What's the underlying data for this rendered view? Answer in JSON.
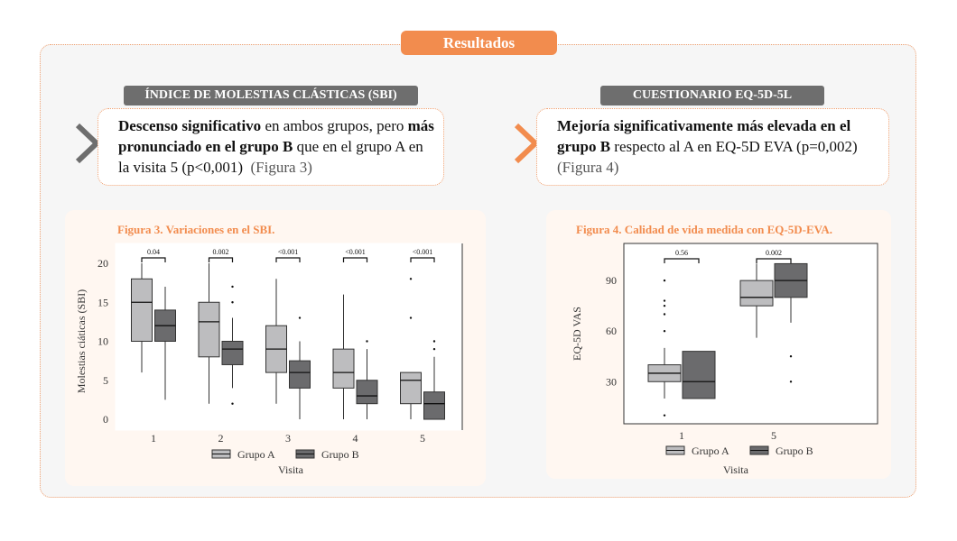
{
  "header": {
    "title": "Resultados"
  },
  "left": {
    "label": "ÍNDICE DE MOLESTIAS CLÁSTICAS (SBI)",
    "text": {
      "b1": "Descenso significativo",
      "t1": " en ambos grupos, pero ",
      "b2": "más pronunciado en el grupo B",
      "t2": " que en el grupo A en la visita 5 (p<0,001)",
      "ref": "(Figura 3)"
    }
  },
  "right": {
    "label": "CUESTIONARIO EQ-5D-5L",
    "text": {
      "b1": "Mejoría significativamente más elevada en el grupo B",
      "t1": " respecto al A en EQ-5D EVA (p=0,002)",
      "ref": "(Figura 4)"
    }
  },
  "colors": {
    "accent": "#f28c4e",
    "grupo_a": "#bdbdbf",
    "grupo_b": "#6b6b6d"
  },
  "icons": [
    "chevron-right-icon-gray",
    "chevron-right-icon-orange"
  ],
  "chart_data": [
    {
      "type": "boxplot",
      "title": "Figura 3. Variaciones en el SBI.",
      "xlabel": "Visita",
      "ylabel": "Molestias ciáticas (SBI)",
      "categories": [
        "1",
        "2",
        "3",
        "4",
        "5"
      ],
      "ylim": [
        0,
        20
      ],
      "yticks": [
        0,
        5,
        10,
        15,
        20
      ],
      "legend": [
        "Grupo A",
        "Grupo B"
      ],
      "pvalues": [
        "0.04",
        "0.002",
        "<0.001",
        "<0.001",
        "<0.001"
      ],
      "series": [
        {
          "name": "Grupo A",
          "boxes": [
            {
              "q1": 10,
              "median": 15,
              "q3": 18,
              "lo": 6,
              "hi": 20,
              "out": []
            },
            {
              "q1": 8,
              "median": 12.5,
              "q3": 15,
              "lo": 2,
              "hi": 20,
              "out": []
            },
            {
              "q1": 6,
              "median": 9,
              "q3": 12,
              "lo": 2,
              "hi": 18,
              "out": []
            },
            {
              "q1": 4,
              "median": 6,
              "q3": 9,
              "lo": 0,
              "hi": 16,
              "out": []
            },
            {
              "q1": 2,
              "median": 5,
              "q3": 6,
              "lo": 0,
              "hi": 6,
              "out": [
                13,
                18
              ]
            }
          ]
        },
        {
          "name": "Grupo B",
          "boxes": [
            {
              "q1": 10,
              "median": 12,
              "q3": 14,
              "lo": 2.5,
              "hi": 17,
              "out": []
            },
            {
              "q1": 7,
              "median": 9,
              "q3": 10,
              "lo": 4,
              "hi": 13,
              "out": [
                2,
                15,
                17
              ]
            },
            {
              "q1": 4,
              "median": 6,
              "q3": 7.5,
              "lo": 0,
              "hi": 10,
              "out": [
                13
              ]
            },
            {
              "q1": 2,
              "median": 3,
              "q3": 5,
              "lo": 0,
              "hi": 9,
              "out": [
                10
              ]
            },
            {
              "q1": 0,
              "median": 2,
              "q3": 3.5,
              "lo": 0,
              "hi": 8,
              "out": [
                9,
                10
              ]
            }
          ]
        }
      ]
    },
    {
      "type": "boxplot",
      "title": "Figura 4. Calidad de vida medida con EQ-5D-EVA.",
      "xlabel": "Visita",
      "ylabel": "EQ-5D VAS",
      "categories": [
        "1",
        "5"
      ],
      "ylim": [
        5,
        112
      ],
      "yticks": [
        30,
        60,
        90
      ],
      "legend": [
        "Grupo A",
        "Grupo B"
      ],
      "pvalues": [
        "0.56",
        "0.002"
      ],
      "series": [
        {
          "name": "Grupo A",
          "boxes": [
            {
              "q1": 30,
              "median": 35,
              "q3": 40,
              "lo": 20,
              "hi": 50,
              "out": [
                10,
                60,
                70,
                75,
                78,
                90
              ]
            },
            {
              "q1": 75,
              "median": 80,
              "q3": 90,
              "lo": 56,
              "hi": 100,
              "out": []
            }
          ]
        },
        {
          "name": "Grupo B",
          "boxes": [
            {
              "q1": 20,
              "median": 30,
              "q3": 48,
              "lo": 20,
              "hi": 48,
              "out": []
            },
            {
              "q1": 80,
              "median": 90,
              "q3": 100,
              "lo": 65,
              "hi": 100,
              "out": [
                30,
                45
              ]
            }
          ]
        }
      ]
    }
  ]
}
